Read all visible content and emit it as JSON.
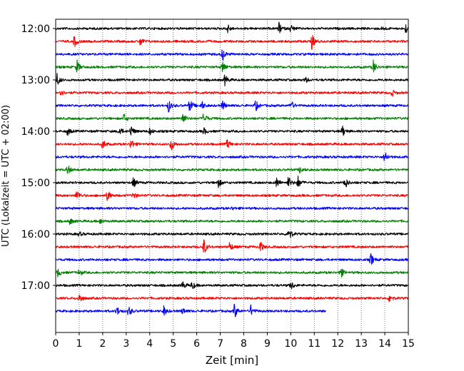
{
  "chart_data": {
    "type": "line",
    "chart_kind": "helicorder seismogram",
    "xlabel": "Zeit  [min]",
    "ylabel": "UTC (Lokalzeit = UTC + 02:00)",
    "xlim": [
      0,
      15
    ],
    "x_ticks": [
      0,
      1,
      2,
      3,
      4,
      5,
      6,
      7,
      8,
      9,
      10,
      11,
      12,
      13,
      14,
      15
    ],
    "x_tick_labels": [
      "0",
      "1",
      "2",
      "3",
      "4",
      "5",
      "6",
      "7",
      "8",
      "9",
      "10",
      "11",
      "12",
      "13",
      "14",
      "15"
    ],
    "vertical_grid": "dotted",
    "y_tick_labels": [
      "12:00",
      "13:00",
      "14:00",
      "15:00",
      "16:00",
      "17:00"
    ],
    "y_tick_rows": [
      0,
      4,
      8,
      12,
      16,
      20
    ],
    "row_color_cycle": [
      "#000000",
      "#ff0000",
      "#0000ff",
      "#008000"
    ],
    "rows": [
      {
        "events": [
          {
            "t": 7.3,
            "a": 7
          },
          {
            "t": 9.5,
            "a": 8
          },
          {
            "t": 10.0,
            "a": 6
          },
          {
            "t": 14.9,
            "a": 7
          },
          {
            "t": 13.9,
            "a": 3
          }
        ]
      },
      {
        "events": [
          {
            "t": 0.8,
            "a": 9
          },
          {
            "t": 3.6,
            "a": 7
          },
          {
            "t": 10.9,
            "a": 11
          }
        ]
      },
      {
        "events": [
          {
            "t": 7.1,
            "a": 9
          }
        ]
      },
      {
        "events": [
          {
            "t": 0.9,
            "a": 10
          },
          {
            "t": 7.1,
            "a": 9
          },
          {
            "t": 13.5,
            "a": 11
          }
        ]
      },
      {
        "events": [
          {
            "t": 0.05,
            "a": 10
          },
          {
            "t": 7.2,
            "a": 8
          },
          {
            "t": 10.6,
            "a": 5
          }
        ]
      },
      {
        "events": [
          {
            "t": 0.2,
            "a": 6
          },
          {
            "t": 14.3,
            "a": 5
          }
        ]
      },
      {
        "events": [
          {
            "t": 4.8,
            "a": 9
          },
          {
            "t": 5.7,
            "a": 10
          },
          {
            "t": 6.2,
            "a": 7
          },
          {
            "t": 7.1,
            "a": 7
          },
          {
            "t": 8.5,
            "a": 8
          },
          {
            "t": 10.0,
            "a": 8
          }
        ]
      },
      {
        "events": [
          {
            "t": 2.9,
            "a": 7
          },
          {
            "t": 5.4,
            "a": 9
          },
          {
            "t": 6.3,
            "a": 10
          }
        ]
      },
      {
        "events": [
          {
            "t": 0.5,
            "a": 6
          },
          {
            "t": 2.7,
            "a": 8
          },
          {
            "t": 3.2,
            "a": 9
          },
          {
            "t": 4.0,
            "a": 5
          },
          {
            "t": 6.3,
            "a": 5
          },
          {
            "t": 12.2,
            "a": 8
          }
        ]
      },
      {
        "events": [
          {
            "t": 2.0,
            "a": 8
          },
          {
            "t": 3.2,
            "a": 8
          },
          {
            "t": 4.9,
            "a": 11
          },
          {
            "t": 7.3,
            "a": 7
          }
        ]
      },
      {
        "events": [
          {
            "t": 14.0,
            "a": 9
          }
        ]
      },
      {
        "events": [
          {
            "t": 0.5,
            "a": 8
          },
          {
            "t": 10.4,
            "a": 6
          }
        ]
      },
      {
        "events": [
          {
            "t": 3.3,
            "a": 7
          },
          {
            "t": 6.9,
            "a": 8
          },
          {
            "t": 9.4,
            "a": 8
          },
          {
            "t": 9.9,
            "a": 9
          },
          {
            "t": 10.3,
            "a": 9
          },
          {
            "t": 12.3,
            "a": 10
          }
        ]
      },
      {
        "events": [
          {
            "t": 0.9,
            "a": 8
          },
          {
            "t": 2.2,
            "a": 9
          },
          {
            "t": 3.3,
            "a": 6
          }
        ]
      },
      {
        "events": [
          {
            "t": 7.5,
            "a": 2
          }
        ]
      },
      {
        "events": [
          {
            "t": 0.6,
            "a": 5
          },
          {
            "t": 1.9,
            "a": 4
          }
        ]
      },
      {
        "events": [
          {
            "t": 1.0,
            "a": 3
          },
          {
            "t": 9.9,
            "a": 12
          }
        ]
      },
      {
        "events": [
          {
            "t": 6.3,
            "a": 12
          },
          {
            "t": 7.4,
            "a": 7
          },
          {
            "t": 8.7,
            "a": 9
          }
        ]
      },
      {
        "events": [
          {
            "t": 13.4,
            "a": 9
          }
        ]
      },
      {
        "events": [
          {
            "t": 0.1,
            "a": 6
          },
          {
            "t": 1.0,
            "a": 5
          },
          {
            "t": 12.1,
            "a": 10
          }
        ]
      },
      {
        "events": [
          {
            "t": 5.4,
            "a": 6
          },
          {
            "t": 5.8,
            "a": 6
          },
          {
            "t": 10.0,
            "a": 7
          }
        ]
      },
      {
        "events": [
          {
            "t": 1.0,
            "a": 8
          },
          {
            "t": 14.2,
            "a": 7
          }
        ]
      },
      {
        "end": 11.5,
        "events": [
          {
            "t": 2.6,
            "a": 7
          },
          {
            "t": 3.1,
            "a": 8
          },
          {
            "t": 4.6,
            "a": 7
          },
          {
            "t": 5.4,
            "a": 5
          },
          {
            "t": 7.6,
            "a": 12
          },
          {
            "t": 8.3,
            "a": 8
          }
        ]
      }
    ]
  }
}
